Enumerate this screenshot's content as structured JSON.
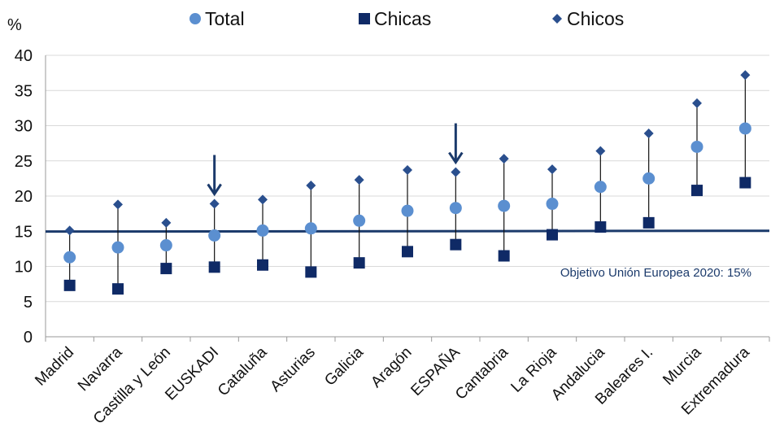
{
  "chart_data": {
    "type": "scatter",
    "ylabel": "%",
    "ylim": [
      0,
      40
    ],
    "yticks": [
      0,
      5,
      10,
      15,
      20,
      25,
      30,
      35,
      40
    ],
    "grid": true,
    "legend_position": "top",
    "categories": [
      "Madrid",
      "Navarra",
      "Castilla y León",
      "EUSKADI",
      "Cataluña",
      "Asturias",
      "Galicia",
      "Aragón",
      "ESPAÑA",
      "Cantabria",
      "La Rioja",
      "Andalucia",
      "Baleares I.",
      "Murcia",
      "Extremadura"
    ],
    "series": [
      {
        "name": "Total",
        "marker": "circle",
        "color": "#5b8fd0",
        "values": [
          11.3,
          12.7,
          13.0,
          14.4,
          15.1,
          15.4,
          16.5,
          17.9,
          18.3,
          18.6,
          18.9,
          21.3,
          22.5,
          27.0,
          29.6
        ]
      },
      {
        "name": "Chicas",
        "marker": "square",
        "color": "#0f2a66",
        "values": [
          7.3,
          6.8,
          9.7,
          9.9,
          10.2,
          9.2,
          10.5,
          12.1,
          13.1,
          11.5,
          14.5,
          15.6,
          16.2,
          20.8,
          21.9
        ]
      },
      {
        "name": "Chicos",
        "marker": "diamond",
        "color": "#2a4f8e",
        "values": [
          15.1,
          18.8,
          16.2,
          18.9,
          19.5,
          21.5,
          22.3,
          23.7,
          23.4,
          25.3,
          23.8,
          26.4,
          28.9,
          33.2,
          37.2
        ]
      }
    ],
    "reference_line": {
      "value": 15,
      "label": "Objetivo Unión Europea 2020: 15%",
      "color": "#1b3a6b"
    },
    "highlighted_categories": [
      "EUSKADI",
      "ESPAÑA"
    ]
  }
}
